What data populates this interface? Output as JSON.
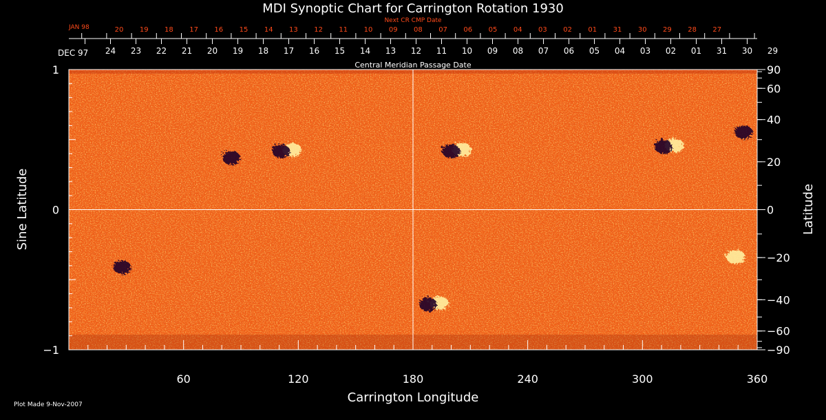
{
  "chart_data": {
    "type": "heatmap",
    "title": "MDI Synoptic Chart for Carrington Rotation 1930",
    "xlabel": "Carrington Longitude",
    "ylabel": "Sine Latitude",
    "y2label": "Latitude",
    "footer": "Plot Made  9-Nov-2007",
    "xlim": [
      0,
      360
    ],
    "ylim": [
      -1,
      1
    ],
    "x_ticks": [
      60,
      120,
      180,
      240,
      300,
      360
    ],
    "y_ticks": [
      "1",
      "0",
      "−1"
    ],
    "y2_ticks": [
      90,
      60,
      40,
      20,
      0,
      -20,
      -40,
      -60,
      -90
    ],
    "grid": "center cross lines at longitude 180 and latitude 0",
    "date_axis": {
      "label": "Central Meridian Passage Date",
      "start_label": "DEC 97",
      "dates": [
        "24",
        "23",
        "22",
        "21",
        "20",
        "19",
        "18",
        "17",
        "16",
        "15",
        "14",
        "13",
        "12",
        "11",
        "10",
        "09",
        "08",
        "07",
        "06",
        "05",
        "04",
        "03",
        "02",
        "01",
        "31",
        "30",
        "29"
      ]
    },
    "next_date_axis": {
      "label": "Next CR CMP Date",
      "start_label": "JAN 98",
      "dates": [
        "20",
        "19",
        "18",
        "17",
        "16",
        "15",
        "14",
        "13",
        "12",
        "11",
        "10",
        "09",
        "08",
        "07",
        "06",
        "05",
        "04",
        "03",
        "02",
        "01",
        "31",
        "30",
        "29",
        "28",
        "27"
      ]
    },
    "colors": {
      "background": "#000000",
      "map_base": "#f06018",
      "positive_flux": "#fff0a0",
      "negative_flux": "#200028",
      "axis": "#ffffff",
      "next_cr_text": "#ff4a1a"
    },
    "active_regions": [
      {
        "lon": 87,
        "lat": 23,
        "polarity": "negative"
      },
      {
        "lon": 113,
        "lat": 26,
        "polarity": "mixed"
      },
      {
        "lon": 202,
        "lat": 26,
        "polarity": "mixed"
      },
      {
        "lon": 313,
        "lat": 28,
        "polarity": "mixed"
      },
      {
        "lon": 355,
        "lat": 35,
        "polarity": "negative"
      },
      {
        "lon": 345,
        "lat": -19,
        "polarity": "positive"
      },
      {
        "lon": 190,
        "lat": -41,
        "polarity": "mixed"
      },
      {
        "lon": 30,
        "lat": -23,
        "polarity": "negative"
      }
    ]
  }
}
